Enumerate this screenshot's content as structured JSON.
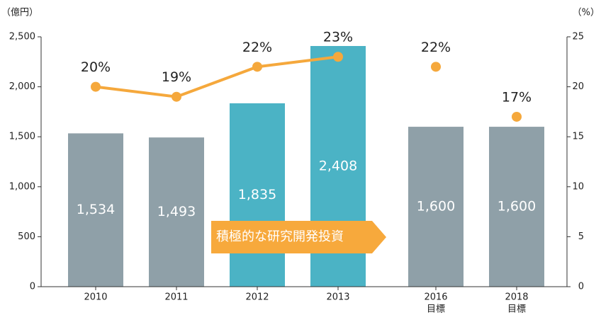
{
  "chart_data": {
    "type": "bar",
    "y_unit_label": "（億円）",
    "y2_unit_label": "（%）",
    "annotation": "積極的な研究開発投資",
    "categories": [
      "2010",
      "2011",
      "2012",
      "2013",
      "2016",
      "2018"
    ],
    "category_sublabels": [
      null,
      null,
      null,
      null,
      "目標",
      "目標"
    ],
    "series": [
      {
        "type": "bar",
        "colors": [
          "#8fa0a8",
          "#8fa0a8",
          "#4bb3c5",
          "#4bb3c5",
          "#8fa0a8",
          "#8fa0a8"
        ],
        "values": [
          1534,
          1493,
          1835,
          2408,
          1600,
          1600
        ],
        "value_labels": [
          "1,534",
          "1,493",
          "1,835",
          "2,408",
          "1,600",
          "1,600"
        ]
      },
      {
        "type": "line",
        "axis": "y2",
        "color": "#f5a83c",
        "values": [
          20,
          19,
          22,
          23,
          null,
          null
        ],
        "value_labels": [
          "20%",
          "19%",
          "22%",
          "23%",
          null,
          null
        ]
      },
      {
        "type": "scatter",
        "axis": "y2",
        "color": "#f5a83c",
        "values": [
          null,
          null,
          null,
          null,
          22,
          17
        ],
        "value_labels": [
          null,
          null,
          null,
          null,
          "22%",
          "17%"
        ]
      }
    ],
    "ylim": [
      0,
      2500
    ],
    "yticks": [
      0,
      500,
      {
        "value": 1000,
        "label": "1,000"
      },
      {
        "value": 1500,
        "label": "1,500"
      },
      {
        "value": 2000,
        "label": "2,000"
      },
      {
        "value": 2500,
        "label": "2,500"
      }
    ],
    "y2lim": [
      0,
      25
    ],
    "y2ticks": [
      0,
      5,
      10,
      15,
      20,
      25
    ]
  }
}
